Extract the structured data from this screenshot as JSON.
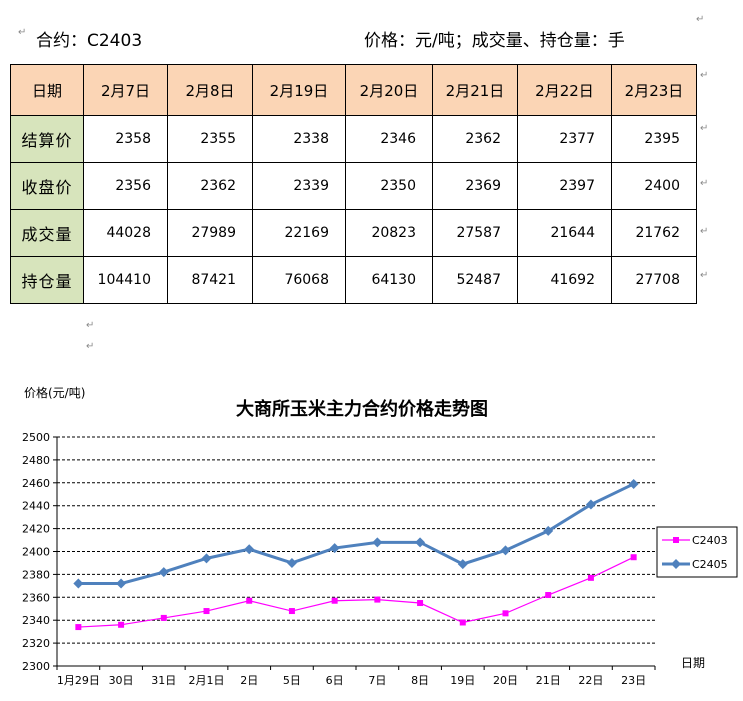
{
  "header": {
    "contract": "合约：C2403",
    "units": "价格：元/吨；成交量、持仓量：手"
  },
  "table": {
    "columns": [
      "日期",
      "2月7日",
      "2月8日",
      "2月19日",
      "2月20日",
      "2月21日",
      "2月22日",
      "2月23日"
    ],
    "rows": [
      {
        "label": "结算价",
        "values": [
          "2358",
          "2355",
          "2338",
          "2346",
          "2362",
          "2377",
          "2395"
        ]
      },
      {
        "label": "收盘价",
        "values": [
          "2356",
          "2362",
          "2339",
          "2350",
          "2369",
          "2397",
          "2400"
        ]
      },
      {
        "label": "成交量",
        "values": [
          "44028",
          "27989",
          "22169",
          "20823",
          "27587",
          "21644",
          "21762"
        ]
      },
      {
        "label": "持仓量",
        "values": [
          "104410",
          "87421",
          "76068",
          "64130",
          "52487",
          "41692",
          "27708"
        ]
      }
    ]
  },
  "chart_data": {
    "type": "line",
    "title": "大商所玉米主力合约价格走势图",
    "ylabel": "价格(元/吨)",
    "xlabel": "日期",
    "categories": [
      "1月29日",
      "30日",
      "31日",
      "2月1日",
      "2日",
      "5日",
      "6日",
      "7日",
      "8日",
      "19日",
      "20日",
      "21日",
      "22日",
      "23日"
    ],
    "ylim": [
      2300,
      2500
    ],
    "yticks": [
      2300,
      2320,
      2340,
      2360,
      2380,
      2400,
      2420,
      2440,
      2460,
      2480,
      2500
    ],
    "grid": true,
    "legend": "right",
    "series": [
      {
        "name": "C2403",
        "color": "#ff00ff",
        "marker": "square",
        "values": [
          2334,
          2336,
          2342,
          2348,
          2357,
          2348,
          2357,
          2358,
          2355,
          2338,
          2346,
          2362,
          2377,
          2395
        ]
      },
      {
        "name": "C2405",
        "color": "#4f81bd",
        "marker": "diamond",
        "values": [
          2372,
          2372,
          2382,
          2394,
          2402,
          2390,
          2403,
          2408,
          2408,
          2389,
          2401,
          2418,
          2441,
          2459
        ]
      }
    ]
  }
}
